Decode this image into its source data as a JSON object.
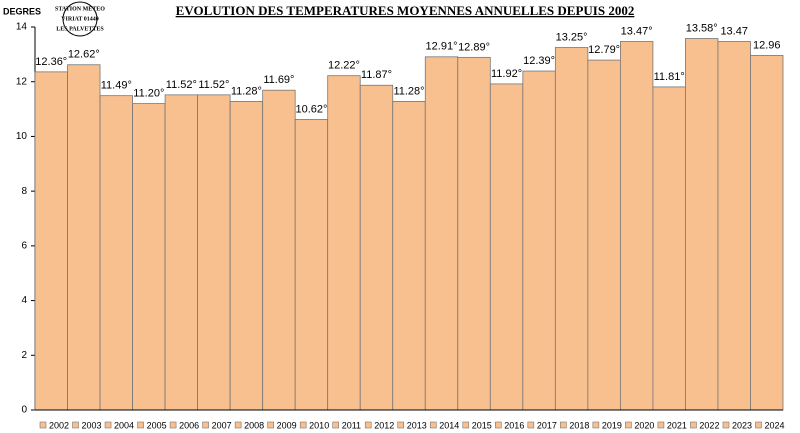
{
  "chart_data": {
    "type": "bar",
    "title": "EVOLUTION DES TEMPERATURES MOYENNES ANNUELLES DEPUIS 2002",
    "y_label": "DEGRES",
    "stamp": [
      "STATION METEO",
      "VIRIAT 01440",
      "LES PALVETTES"
    ],
    "categories": [
      "2002",
      "2003",
      "2004",
      "2005",
      "2006",
      "2007",
      "2008",
      "2009",
      "2010",
      "2011",
      "2012",
      "2013",
      "2014",
      "2015",
      "2016",
      "2017",
      "2018",
      "2019",
      "2020",
      "2021",
      "2022",
      "2023",
      "2024"
    ],
    "values": [
      12.36,
      12.62,
      11.49,
      11.2,
      11.52,
      11.52,
      11.28,
      11.69,
      10.62,
      12.22,
      11.87,
      11.28,
      12.91,
      12.89,
      11.92,
      12.39,
      13.25,
      12.79,
      13.47,
      11.81,
      13.58,
      13.47,
      12.96
    ],
    "value_labels": [
      "12.36°",
      "12.62°",
      "11.49°",
      "11.20°",
      "11.52°",
      "11.52°",
      "11.28°",
      "11.69°",
      "10.62°",
      "12.22°",
      "11.87°",
      "11.28°",
      "12.91°",
      "12.89°",
      "11.92°",
      "12.39°",
      "13.25°",
      "12.79°",
      "13.47°",
      "11.81°",
      "13.58°",
      "13.47",
      "12.96"
    ],
    "color": "#f8bf8f",
    "ylim": [
      0,
      14
    ],
    "yticks": [
      0,
      2,
      4,
      6,
      8,
      10,
      12,
      14
    ],
    "grid": false,
    "legend": "bottom"
  }
}
